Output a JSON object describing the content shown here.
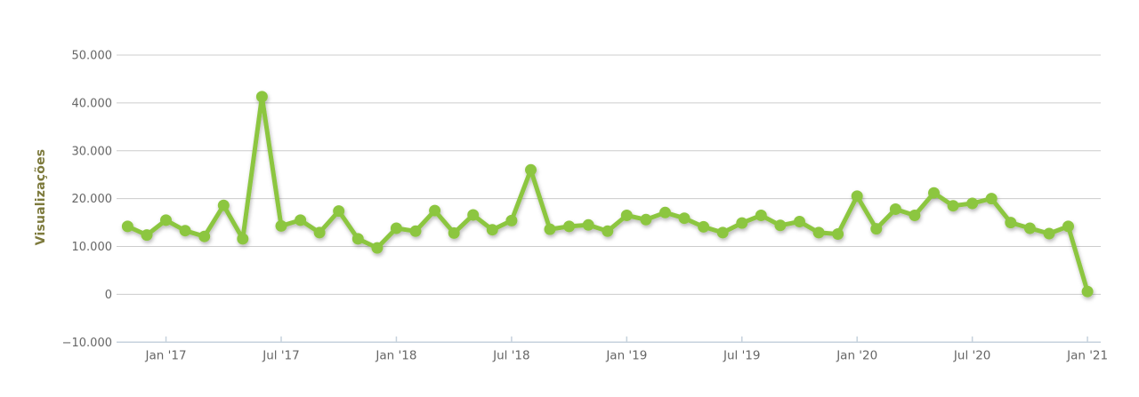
{
  "chart_data": {
    "type": "line",
    "title": "",
    "xlabel": "",
    "ylabel": "Visualizações",
    "series": [
      {
        "name": "Visualizações",
        "color": "#8cc63f",
        "values": [
          14200,
          12400,
          15500,
          13300,
          12100,
          18600,
          11600,
          41300,
          14300,
          15500,
          12900,
          17400,
          11600,
          9700,
          13800,
          13200,
          17500,
          12800,
          16600,
          13500,
          15400,
          26000,
          13600,
          14200,
          14500,
          13200,
          16500,
          15600,
          17100,
          15900,
          14100,
          12900,
          14900,
          16500,
          14400,
          15200,
          12900,
          12600,
          20500,
          13700,
          17800,
          16500,
          21200,
          18500,
          19000,
          20000,
          15000,
          13800,
          12700,
          14200,
          600
        ]
      }
    ],
    "categories": [
      "Nov '16",
      "Dec '16",
      "Jan '17",
      "Feb '17",
      "Mar '17",
      "Apr '17",
      "May '17",
      "Jun '17",
      "Jul '17",
      "Aug '17",
      "Sep '17",
      "Oct '17",
      "Nov '17",
      "Dec '17",
      "Jan '18",
      "Feb '18",
      "Mar '18",
      "Apr '18",
      "May '18",
      "Jun '18",
      "Jul '18",
      "Aug '18",
      "Sep '18",
      "Oct '18",
      "Nov '18",
      "Dec '18",
      "Jan '19",
      "Feb '19",
      "Mar '19",
      "Apr '19",
      "May '19",
      "Jun '19",
      "Jul '19",
      "Aug '19",
      "Sep '19",
      "Oct '19",
      "Nov '19",
      "Dec '19",
      "Jan '20",
      "Feb '20",
      "Mar '20",
      "Apr '20",
      "May '20",
      "Jun '20",
      "Jul '20",
      "Aug '20",
      "Sep '20",
      "Oct '20",
      "Nov '20",
      "Dec '20",
      "Jan '21"
    ],
    "x_tick_labels": [
      "Jan '17",
      "Jul '17",
      "Jan '18",
      "Jul '18",
      "Jan '19",
      "Jul '19",
      "Jan '20",
      "Jul '20",
      "Jan '21"
    ],
    "y_ticks": [
      {
        "value": 50000,
        "label": "50.000"
      },
      {
        "value": 40000,
        "label": "40.000"
      },
      {
        "value": 30000,
        "label": "30.000"
      },
      {
        "value": 20000,
        "label": "20.000"
      },
      {
        "value": 10000,
        "label": "10.000"
      },
      {
        "value": 0,
        "label": "0"
      },
      {
        "value": -10000,
        "label": "−10.000"
      }
    ],
    "ylim": [
      -10000,
      55000
    ],
    "grid": true,
    "legend": false,
    "colors": {
      "line": "#8cc63f",
      "grid": "#cccccc",
      "axis_line": "#c6d2dd",
      "tick_label": "#666666",
      "y_axis_title": "#7d7a3c",
      "background": "#ffffff"
    }
  }
}
